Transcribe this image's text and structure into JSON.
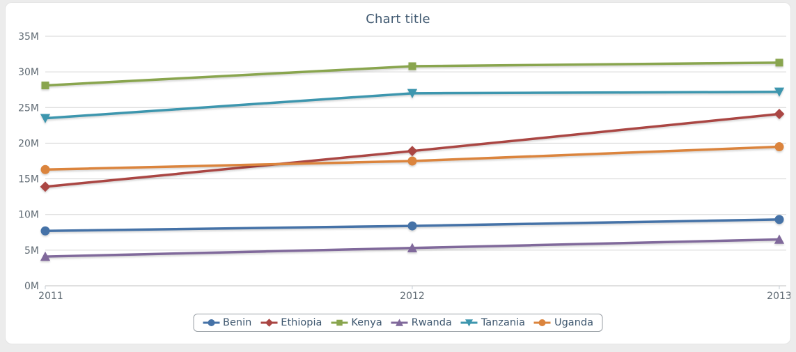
{
  "page": {
    "background_color": "#ECECEC",
    "card_background_color": "#FFFFFF"
  },
  "styles": {
    "title_color": "#3E576F",
    "axis_label_color": "#5F6A73",
    "gridline_color": "#D6D6D6",
    "axis_line_color": "#C2C2C2",
    "tick_color": "#C4CCD4",
    "legend_text_color": "#3E576F",
    "legend_border_color": "#999FA5"
  },
  "chart_data": {
    "type": "line",
    "title": "Chart title",
    "xlabel": "",
    "ylabel": "",
    "x": [
      2011,
      2012,
      2013
    ],
    "x_tick_labels": [
      "2011",
      "2012",
      "2013"
    ],
    "ylim": [
      0,
      35
    ],
    "y_tick_step": 5,
    "y_tick_labels": [
      "0M",
      "5M",
      "10M",
      "15M",
      "20M",
      "25M",
      "30M",
      "35M"
    ],
    "values_unit": "millions",
    "grid": true,
    "legend_position": "bottom-center",
    "series": [
      {
        "name": "Benin",
        "color": "#4572A7",
        "marker": "circle",
        "values": [
          7.7,
          8.4,
          9.3
        ]
      },
      {
        "name": "Ethiopia",
        "color": "#AA4643",
        "marker": "diamond",
        "values": [
          13.9,
          18.9,
          24.1
        ]
      },
      {
        "name": "Kenya",
        "color": "#89A54E",
        "marker": "square",
        "values": [
          28.1,
          30.8,
          31.3
        ]
      },
      {
        "name": "Rwanda",
        "color": "#80699B",
        "marker": "triangle",
        "values": [
          4.1,
          5.3,
          6.5
        ]
      },
      {
        "name": "Tanzania",
        "color": "#3D96AE",
        "marker": "triangle-down",
        "values": [
          23.5,
          27.0,
          27.2
        ]
      },
      {
        "name": "Uganda",
        "color": "#DB843D",
        "marker": "circle",
        "values": [
          16.3,
          17.5,
          19.5
        ]
      }
    ]
  }
}
